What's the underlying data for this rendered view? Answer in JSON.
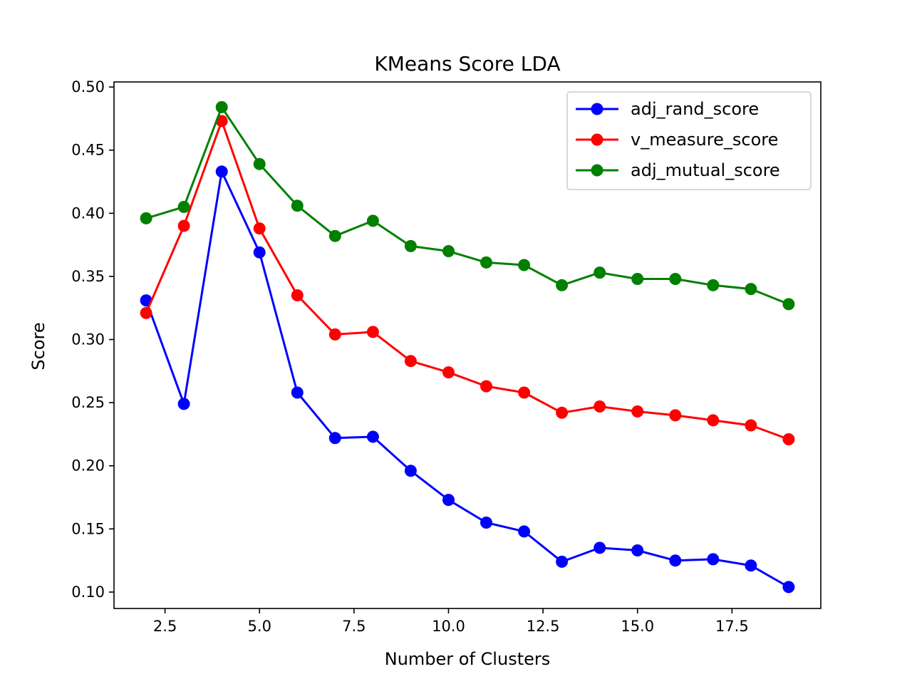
{
  "chart_data": {
    "type": "line",
    "title": "KMeans Score LDA",
    "xlabel": "Number of Clusters",
    "ylabel": "Score",
    "xlim": [
      1.15,
      19.85
    ],
    "ylim": [
      0.087,
      0.504
    ],
    "xticks": [
      2.5,
      5.0,
      7.5,
      10.0,
      12.5,
      15.0,
      17.5
    ],
    "xtick_labels": [
      "2.5",
      "5.0",
      "7.5",
      "10.0",
      "12.5",
      "15.0",
      "17.5"
    ],
    "yticks": [
      0.1,
      0.15,
      0.2,
      0.25,
      0.3,
      0.35,
      0.4,
      0.45,
      0.5
    ],
    "ytick_labels": [
      "0.10",
      "0.15",
      "0.20",
      "0.25",
      "0.30",
      "0.35",
      "0.40",
      "0.45",
      "0.50"
    ],
    "grid": false,
    "legend_position": "top-right",
    "x": [
      2,
      3,
      4,
      5,
      6,
      7,
      8,
      9,
      10,
      11,
      12,
      13,
      14,
      15,
      16,
      17,
      18,
      19
    ],
    "series": [
      {
        "name": "adj_rand_score",
        "color": "#0000ff",
        "marker": "circle",
        "values": [
          0.331,
          0.249,
          0.433,
          0.369,
          0.258,
          0.222,
          0.223,
          0.196,
          0.173,
          0.155,
          0.148,
          0.124,
          0.135,
          0.133,
          0.125,
          0.126,
          0.121,
          0.104
        ]
      },
      {
        "name": "v_measure_score",
        "color": "#ff0000",
        "marker": "circle",
        "values": [
          0.321,
          0.39,
          0.473,
          0.388,
          0.335,
          0.304,
          0.306,
          0.283,
          0.274,
          0.263,
          0.258,
          0.242,
          0.247,
          0.243,
          0.24,
          0.236,
          0.232,
          0.221
        ]
      },
      {
        "name": "adj_mutual_score",
        "color": "#008000",
        "marker": "circle",
        "values": [
          0.396,
          0.405,
          0.484,
          0.439,
          0.406,
          0.382,
          0.394,
          0.374,
          0.37,
          0.361,
          0.359,
          0.343,
          0.353,
          0.348,
          0.348,
          0.343,
          0.34,
          0.328
        ]
      }
    ]
  }
}
